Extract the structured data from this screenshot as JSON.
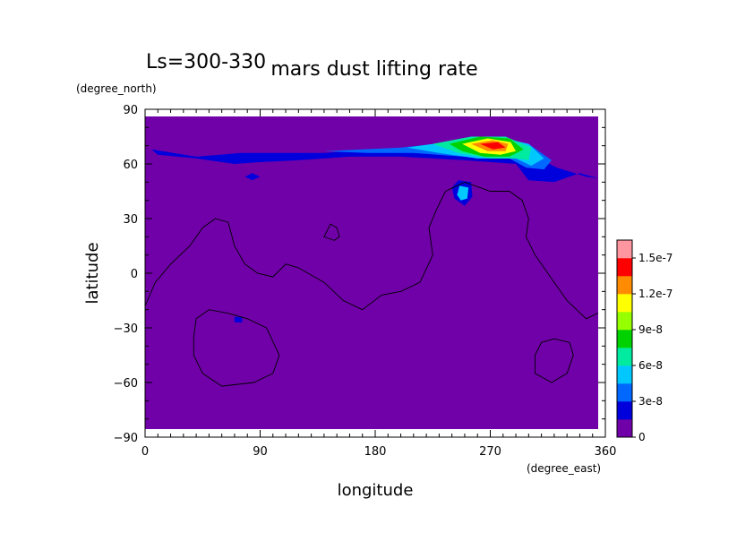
{
  "chart_data": {
    "type": "heatmap",
    "title": "mars dust lifting rate",
    "subtitle": "Ls=300-330",
    "xlabel": "longitude",
    "ylabel": "latitude",
    "xunit": "(degree_east)",
    "yunit": "(degree_north)",
    "xlim": [
      0,
      360
    ],
    "ylim": [
      -90,
      90
    ],
    "xticks": [
      0,
      90,
      180,
      270,
      360
    ],
    "yticks": [
      -90,
      -60,
      -30,
      0,
      30,
      60,
      90
    ],
    "xtick_labels": [
      "0",
      "90",
      "180",
      "270",
      "360"
    ],
    "ytick_labels": [
      "−90",
      "−60",
      "−30",
      "0",
      "30",
      "60",
      "90"
    ],
    "colorbar": {
      "levels": [
        0,
        1.5e-08,
        3e-08,
        4.5e-08,
        6e-08,
        7.5e-08,
        9e-08,
        1.05e-07,
        1.2e-07,
        1.35e-07,
        1.5e-07,
        1.65e-07
      ],
      "colors": [
        "#7000a8",
        "#0000dc",
        "#0068ff",
        "#00c8ff",
        "#00eaa0",
        "#00d200",
        "#96ff00",
        "#ffff00",
        "#ff8c00",
        "#ff0000",
        "#ff96a0"
      ],
      "tick_labels": [
        "0",
        "3e-8",
        "6e-8",
        "9e-8",
        "1.2e-7",
        "1.5e-7"
      ],
      "tick_values": [
        0,
        3e-08,
        6e-08,
        9e-08,
        1.2e-07,
        1.5e-07
      ]
    },
    "field": {
      "background_value": 0,
      "plumes": [
        {
          "name": "north-band",
          "lon_range": [
            5,
            355
          ],
          "lat_center": 68,
          "levels": [
            {
              "level": 1,
              "polygon": [
                [
                  5,
                  68
                ],
                [
                  40,
                  64
                ],
                [
                  75,
                  66
                ],
                [
                  110,
                  66
                ],
                [
                  140,
                  66
                ],
                [
                  180,
                  68
                ],
                [
                  230,
                  70
                ],
                [
                  265,
                  70
                ],
                [
                  300,
                  66
                ],
                [
                  322,
                  58
                ],
                [
                  345,
                  53
                ],
                [
                  355,
                  52
                ],
                [
                  340,
                  55
                ],
                [
                  320,
                  50
                ],
                [
                  300,
                  51
                ],
                [
                  290,
                  60
                ],
                [
                  250,
                  62
                ],
                [
                  200,
                  64
                ],
                [
                  160,
                  64
                ],
                [
                  120,
                  62
                ],
                [
                  90,
                  61
                ],
                [
                  70,
                  60
                ],
                [
                  40,
                  63
                ],
                [
                  10,
                  65
                ]
              ]
            },
            {
              "level": 2,
              "polygon": [
                [
                  140,
                  67
                ],
                [
                  200,
                  69
                ],
                [
                  240,
                  72
                ],
                [
                  275,
                  74
                ],
                [
                  300,
                  71
                ],
                [
                  318,
                  62
                ],
                [
                  312,
                  57
                ],
                [
                  298,
                  58
                ],
                [
                  285,
                  63
                ],
                [
                  250,
                  64
                ],
                [
                  210,
                  66
                ],
                [
                  175,
                  66
                ]
              ]
            },
            {
              "level": 3,
              "polygon": [
                [
                  205,
                  69
                ],
                [
                  245,
                  73
                ],
                [
                  275,
                  75
                ],
                [
                  300,
                  71
                ],
                [
                  312,
                  63
                ],
                [
                  302,
                  59
                ],
                [
                  290,
                  63
                ],
                [
                  260,
                  63
                ],
                [
                  230,
                  66
                ]
              ]
            },
            {
              "level": 4,
              "polygon": [
                [
                  225,
                  71
                ],
                [
                  255,
                  75
                ],
                [
                  282,
                  75
                ],
                [
                  302,
                  69
                ],
                [
                  300,
                  62
                ],
                [
                  290,
                  63
                ],
                [
                  270,
                  63
                ],
                [
                  245,
                  66
                ]
              ]
            },
            {
              "level": 5,
              "polygon": [
                [
                  238,
                  71
                ],
                [
                  262,
                  75
                ],
                [
                  285,
                  74
                ],
                [
                  296,
                  68
                ],
                [
                  285,
                  64
                ],
                [
                  265,
                  64
                ],
                [
                  248,
                  67
                ]
              ]
            },
            {
              "level": 7,
              "polygon": [
                [
                  248,
                  71
                ],
                [
                  268,
                  74
                ],
                [
                  286,
                  72
                ],
                [
                  290,
                  67
                ],
                [
                  278,
                  65
                ],
                [
                  262,
                  66
                ]
              ]
            },
            {
              "level": 8,
              "polygon": [
                [
                  255,
                  71
                ],
                [
                  272,
                  73
                ],
                [
                  284,
                  71
                ],
                [
                  282,
                  67
                ],
                [
                  268,
                  67
                ]
              ]
            },
            {
              "level": 9,
              "polygon": [
                [
                  262,
                  71
                ],
                [
                  276,
                  72
                ],
                [
                  282,
                  69
                ],
                [
                  272,
                  68
                ]
              ]
            }
          ]
        },
        {
          "name": "spot-north",
          "levels": [
            {
              "level": 1,
              "polygon": [
                [
                  245,
                  51
                ],
                [
                  255,
                  50
                ],
                [
                  256,
                  42
                ],
                [
                  250,
                  37
                ],
                [
                  242,
                  41
                ],
                [
                  240,
                  47
                ]
              ]
            },
            {
              "level": 3,
              "polygon": [
                [
                  246,
                  48
                ],
                [
                  253,
                  47
                ],
                [
                  252,
                  41
                ],
                [
                  247,
                  40
                ],
                [
                  244,
                  43
                ]
              ]
            }
          ]
        },
        {
          "name": "small-spot-1",
          "levels": [
            {
              "level": 1,
              "polygon": [
                [
                  78,
                  53
                ],
                [
                  84,
                  55
                ],
                [
                  90,
                  53
                ],
                [
                  84,
                  51
                ]
              ]
            }
          ]
        },
        {
          "name": "small-spot-2",
          "levels": [
            {
              "level": 1,
              "polygon": [
                [
                  70,
                  -24
                ],
                [
                  76,
                  -24
                ],
                [
                  76,
                  -27
                ],
                [
                  70,
                  -27
                ]
              ]
            }
          ]
        }
      ],
      "topography_contours": [
        [
          [
            0,
            -18
          ],
          [
            8,
            -5
          ],
          [
            20,
            5
          ],
          [
            35,
            15
          ],
          [
            45,
            25
          ],
          [
            55,
            30
          ],
          [
            65,
            28
          ],
          [
            70,
            15
          ],
          [
            78,
            5
          ],
          [
            88,
            0
          ],
          [
            100,
            -2
          ],
          [
            110,
            5
          ],
          [
            120,
            3
          ],
          [
            140,
            -5
          ],
          [
            155,
            -15
          ],
          [
            170,
            -20
          ],
          [
            185,
            -12
          ],
          [
            200,
            -10
          ],
          [
            215,
            -5
          ],
          [
            225,
            10
          ],
          [
            222,
            25
          ],
          [
            228,
            35
          ],
          [
            235,
            45
          ],
          [
            250,
            50
          ],
          [
            270,
            45
          ],
          [
            285,
            45
          ],
          [
            295,
            40
          ],
          [
            300,
            30
          ],
          [
            298,
            20
          ],
          [
            305,
            10
          ],
          [
            310,
            5
          ],
          [
            320,
            -5
          ],
          [
            330,
            -15
          ],
          [
            345,
            -25
          ],
          [
            360,
            -20
          ]
        ],
        [
          [
            140,
            20
          ],
          [
            145,
            27
          ],
          [
            150,
            25
          ],
          [
            152,
            20
          ],
          [
            148,
            18
          ]
        ],
        [
          [
            40,
            -25
          ],
          [
            50,
            -20
          ],
          [
            65,
            -22
          ],
          [
            80,
            -25
          ],
          [
            95,
            -30
          ],
          [
            105,
            -45
          ],
          [
            100,
            -55
          ],
          [
            85,
            -60
          ],
          [
            60,
            -62
          ],
          [
            45,
            -55
          ],
          [
            38,
            -45
          ],
          [
            38,
            -35
          ]
        ],
        [
          [
            305,
            -45
          ],
          [
            310,
            -38
          ],
          [
            320,
            -36
          ],
          [
            332,
            -38
          ],
          [
            335,
            -45
          ],
          [
            330,
            -55
          ],
          [
            318,
            -60
          ],
          [
            305,
            -55
          ]
        ]
      ]
    }
  }
}
